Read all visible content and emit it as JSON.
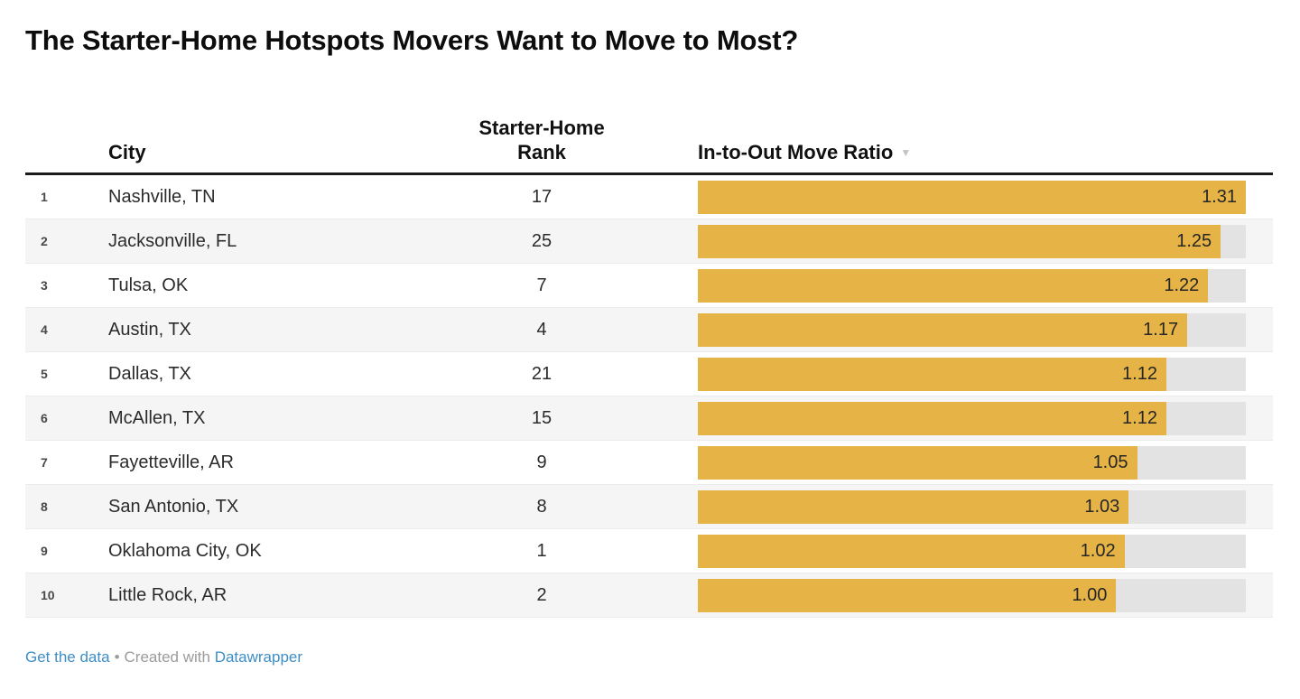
{
  "title": "The Starter-Home Hotspots Movers Want to Move to Most?",
  "table": {
    "headers": {
      "city": "City",
      "rank": "Starter-Home Rank",
      "ratio": "In-to-Out Move Ratio"
    },
    "sort_icon": "▼",
    "rows": [
      {
        "index": "1",
        "city": "Nashville, TN",
        "rank": "17",
        "ratio": 1.31,
        "ratio_label": "1.31"
      },
      {
        "index": "2",
        "city": "Jacksonville, FL",
        "rank": "25",
        "ratio": 1.25,
        "ratio_label": "1.25"
      },
      {
        "index": "3",
        "city": "Tulsa, OK",
        "rank": "7",
        "ratio": 1.22,
        "ratio_label": "1.22"
      },
      {
        "index": "4",
        "city": "Austin, TX",
        "rank": "4",
        "ratio": 1.17,
        "ratio_label": "1.17"
      },
      {
        "index": "5",
        "city": "Dallas, TX",
        "rank": "21",
        "ratio": 1.12,
        "ratio_label": "1.12"
      },
      {
        "index": "6",
        "city": "McAllen, TX",
        "rank": "15",
        "ratio": 1.12,
        "ratio_label": "1.12"
      },
      {
        "index": "7",
        "city": "Fayetteville, AR",
        "rank": "9",
        "ratio": 1.05,
        "ratio_label": "1.05"
      },
      {
        "index": "8",
        "city": "San Antonio, TX",
        "rank": "8",
        "ratio": 1.03,
        "ratio_label": "1.03"
      },
      {
        "index": "9",
        "city": "Oklahoma City, OK",
        "rank": "1",
        "ratio": 1.02,
        "ratio_label": "1.02"
      },
      {
        "index": "10",
        "city": "Little Rock, AR",
        "rank": "2",
        "ratio": 1.0,
        "ratio_label": "1.00"
      }
    ]
  },
  "chart_data": {
    "type": "bar",
    "title": "The Starter-Home Hotspots Movers Want to Move to Most?",
    "categories": [
      "Nashville, TN",
      "Jacksonville, FL",
      "Tulsa, OK",
      "Austin, TX",
      "Dallas, TX",
      "McAllen, TX",
      "Fayetteville, AR",
      "San Antonio, TX",
      "Oklahoma City, OK",
      "Little Rock, AR"
    ],
    "series": [
      {
        "name": "Starter-Home Rank",
        "values": [
          17,
          25,
          7,
          4,
          21,
          15,
          9,
          8,
          1,
          2
        ]
      },
      {
        "name": "In-to-Out Move Ratio",
        "values": [
          1.31,
          1.25,
          1.22,
          1.17,
          1.12,
          1.12,
          1.05,
          1.03,
          1.02,
          1.0
        ]
      }
    ],
    "xlabel": "In-to-Out Move Ratio",
    "ylabel": "City",
    "xlim": [
      0,
      1.31
    ],
    "grid": false,
    "legend_position": "none",
    "sort": "descending by In-to-Out Move Ratio",
    "orientation": "horizontal"
  },
  "footer": {
    "get_data": "Get the data",
    "separator": "•",
    "created_with": "Created with",
    "brand": "Datawrapper"
  },
  "colors": {
    "bar": "#e6b446",
    "track": "#e3e3e3",
    "stripe": "#f5f5f5",
    "link": "#3e8ec4",
    "header_border": "#1a1a1a",
    "row_border": "#ebebeb"
  }
}
